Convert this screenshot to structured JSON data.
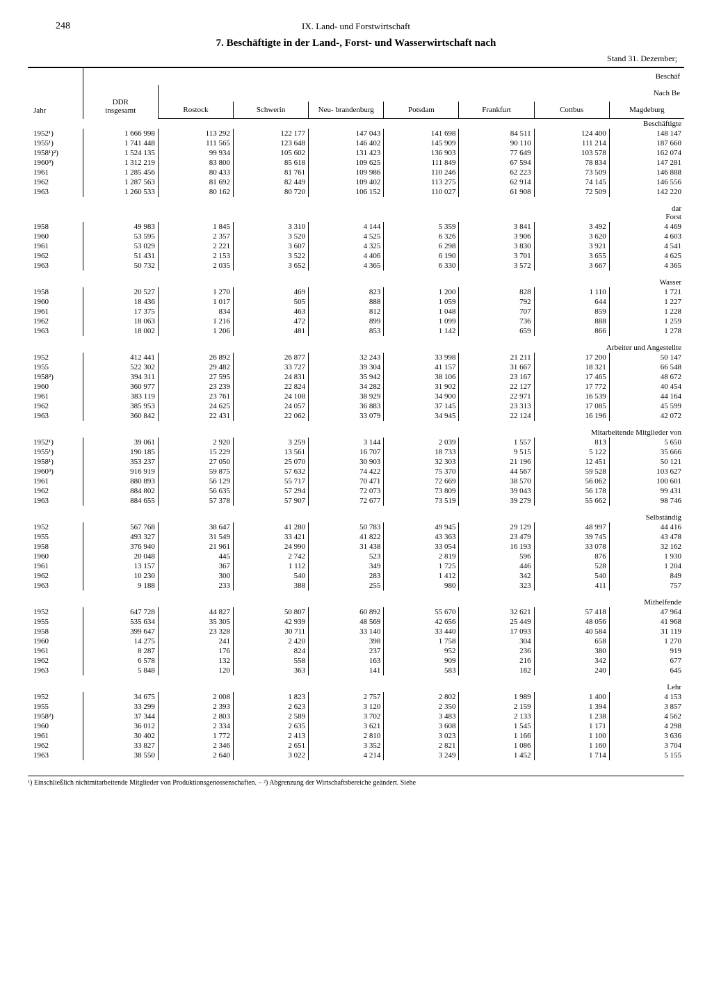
{
  "page_number": "248",
  "section_header": "IX. Land- und Forstwirtschaft",
  "title": "7. Beschäftigte in der Land-, Forst- und Wasserwirtschaft nach",
  "subtitle": "Stand 31. Dezember;",
  "header": {
    "jahr": "Jahr",
    "ddr": "DDR",
    "ddr_sub": "insgesamt",
    "beschaf": "Beschäf",
    "nach_be": "Nach Be",
    "regions": [
      "Rostock",
      "Schwerin",
      "Neu-\nbrandenburg",
      "Potsdam",
      "Frankfurt",
      "Cottbus",
      "Magdeburg"
    ]
  },
  "sections": [
    {
      "label": "Beschäftigte",
      "rows": [
        {
          "jahr": "1952¹)",
          "ddr": "1 666 998",
          "vals": [
            "113 292",
            "122 177",
            "147 043",
            "141 698",
            "84 511",
            "124 400",
            "148 147"
          ]
        },
        {
          "jahr": "1955¹)",
          "ddr": "1 741 448",
          "vals": [
            "111 565",
            "123 648",
            "146 402",
            "145 909",
            "90 110",
            "111 214",
            "187 660"
          ]
        },
        {
          "jahr": "1958¹)²)",
          "ddr": "1 524 135",
          "vals": [
            "99 934",
            "105 602",
            "131 423",
            "136 903",
            "77 649",
            "103 578",
            "162 074"
          ]
        },
        {
          "jahr": "1960³)",
          "ddr": "1 312 219",
          "vals": [
            "83 800",
            "85 618",
            "109 625",
            "111 849",
            "67 594",
            "78 834",
            "147 281"
          ]
        },
        {
          "jahr": "1961",
          "ddr": "1 285 456",
          "vals": [
            "80 433",
            "81 761",
            "109 986",
            "110 246",
            "62 223",
            "73 509",
            "146 888"
          ]
        },
        {
          "jahr": "1962",
          "ddr": "1 287 563",
          "vals": [
            "81 692",
            "82 449",
            "109 402",
            "113 275",
            "62 914",
            "74 145",
            "146 556"
          ]
        },
        {
          "jahr": "1963",
          "ddr": "1 260 533",
          "vals": [
            "80 162",
            "80 720",
            "106 152",
            "110 027",
            "61 908",
            "72 509",
            "142 220"
          ]
        }
      ]
    },
    {
      "label": "dar\nForst",
      "rows": [
        {
          "jahr": "1958",
          "ddr": "49 983",
          "vals": [
            "1 845",
            "3 310",
            "4 144",
            "5 359",
            "3 841",
            "3 492",
            "4 469"
          ]
        },
        {
          "jahr": "1960",
          "ddr": "53 595",
          "vals": [
            "2 357",
            "3 520",
            "4 525",
            "6 326",
            "3 906",
            "3 620",
            "4 603"
          ]
        },
        {
          "jahr": "1961",
          "ddr": "53 029",
          "vals": [
            "2 221",
            "3 607",
            "4 325",
            "6 298",
            "3 830",
            "3 921",
            "4 541"
          ]
        },
        {
          "jahr": "1962",
          "ddr": "51 431",
          "vals": [
            "2 153",
            "3 522",
            "4 406",
            "6 190",
            "3 701",
            "3 655",
            "4 625"
          ]
        },
        {
          "jahr": "1963",
          "ddr": "50 732",
          "vals": [
            "2 035",
            "3 652",
            "4 365",
            "6 330",
            "3 572",
            "3 667",
            "4 365"
          ]
        }
      ]
    },
    {
      "label": "Wasser",
      "rows": [
        {
          "jahr": "1958",
          "ddr": "20 527",
          "vals": [
            "1 270",
            "469",
            "823",
            "1 200",
            "828",
            "1 110",
            "1 721"
          ]
        },
        {
          "jahr": "1960",
          "ddr": "18 436",
          "vals": [
            "1 017",
            "505",
            "888",
            "1 059",
            "792",
            "644",
            "1 227"
          ]
        },
        {
          "jahr": "1961",
          "ddr": "17 375",
          "vals": [
            "834",
            "463",
            "812",
            "1 048",
            "707",
            "859",
            "1 228"
          ]
        },
        {
          "jahr": "1962",
          "ddr": "18 063",
          "vals": [
            "1 216",
            "472",
            "899",
            "1 099",
            "736",
            "888",
            "1 259"
          ]
        },
        {
          "jahr": "1963",
          "ddr": "18 002",
          "vals": [
            "1 206",
            "481",
            "853",
            "1 142",
            "659",
            "866",
            "1 278"
          ]
        }
      ]
    },
    {
      "label": "Arbeiter und Angestellte",
      "rows": [
        {
          "jahr": "1952",
          "ddr": "412 441",
          "vals": [
            "26 892",
            "26 877",
            "32 243",
            "33 998",
            "21 211",
            "17 200",
            "50 147"
          ]
        },
        {
          "jahr": "1955",
          "ddr": "522 302",
          "vals": [
            "29 482",
            "33 727",
            "39 304",
            "41 157",
            "31 667",
            "18 321",
            "66 548"
          ]
        },
        {
          "jahr": "1958²)",
          "ddr": "394 311",
          "vals": [
            "27 595",
            "24 831",
            "35 942",
            "38 106",
            "23 167",
            "17 465",
            "48 672"
          ]
        },
        {
          "jahr": "1960",
          "ddr": "360 977",
          "vals": [
            "23 239",
            "22 824",
            "34 282",
            "31 902",
            "22 127",
            "17 772",
            "40 454"
          ]
        },
        {
          "jahr": "1961",
          "ddr": "383 119",
          "vals": [
            "23 761",
            "24 108",
            "38 929",
            "34 900",
            "22 971",
            "16 539",
            "44 164"
          ]
        },
        {
          "jahr": "1962",
          "ddr": "385 953",
          "vals": [
            "24 625",
            "24 057",
            "36 883",
            "37 145",
            "23 313",
            "17 085",
            "45 599"
          ]
        },
        {
          "jahr": "1963",
          "ddr": "360 842",
          "vals": [
            "22 431",
            "22 062",
            "33 079",
            "34 945",
            "22 124",
            "16 196",
            "42 072"
          ]
        }
      ]
    },
    {
      "label": "Mitarbeitende Mitglieder von",
      "rows": [
        {
          "jahr": "1952¹)",
          "ddr": "39 061",
          "vals": [
            "2 920",
            "3 259",
            "3 144",
            "2 039",
            "1 557",
            "813",
            "5 650"
          ]
        },
        {
          "jahr": "1955¹)",
          "ddr": "190 185",
          "vals": [
            "15 229",
            "13 561",
            "16 707",
            "18 733",
            "9 515",
            "5 122",
            "35 666"
          ]
        },
        {
          "jahr": "1958¹)",
          "ddr": "353 237",
          "vals": [
            "27 050",
            "25 070",
            "30 903",
            "32 303",
            "21 196",
            "12 451",
            "50 121"
          ]
        },
        {
          "jahr": "1960³)",
          "ddr": "916 919",
          "vals": [
            "59 875",
            "57 632",
            "74 422",
            "75 370",
            "44 567",
            "59 528",
            "103 627"
          ]
        },
        {
          "jahr": "1961",
          "ddr": "880 893",
          "vals": [
            "56 129",
            "55 717",
            "70 471",
            "72 669",
            "38 570",
            "56 062",
            "100 601"
          ]
        },
        {
          "jahr": "1962",
          "ddr": "884 802",
          "vals": [
            "56 635",
            "57 294",
            "72 073",
            "73 809",
            "39 043",
            "56 178",
            "99 431"
          ]
        },
        {
          "jahr": "1963",
          "ddr": "884 655",
          "vals": [
            "57 378",
            "57 907",
            "72 677",
            "73 519",
            "39 279",
            "55 662",
            "98 746"
          ]
        }
      ]
    },
    {
      "label": "Selbständig",
      "rows": [
        {
          "jahr": "1952",
          "ddr": "567 768",
          "vals": [
            "38 647",
            "41 280",
            "50 783",
            "49 945",
            "29 129",
            "48 997",
            "44 416"
          ]
        },
        {
          "jahr": "1955",
          "ddr": "493 327",
          "vals": [
            "31 549",
            "33 421",
            "41 822",
            "43 363",
            "23 479",
            "39 745",
            "43 478"
          ]
        },
        {
          "jahr": "1958",
          "ddr": "376 940",
          "vals": [
            "21 961",
            "24 990",
            "31 438",
            "33 054",
            "16 193",
            "33 078",
            "32 162"
          ]
        },
        {
          "jahr": "1960",
          "ddr": "20 048",
          "vals": [
            "445",
            "2 742",
            "523",
            "2 819",
            "596",
            "876",
            "1 930"
          ]
        },
        {
          "jahr": "1961",
          "ddr": "13 157",
          "vals": [
            "367",
            "1 112",
            "349",
            "1 725",
            "446",
            "528",
            "1 204"
          ]
        },
        {
          "jahr": "1962",
          "ddr": "10 230",
          "vals": [
            "300",
            "540",
            "283",
            "1 412",
            "342",
            "540",
            "849"
          ]
        },
        {
          "jahr": "1963",
          "ddr": "9 188",
          "vals": [
            "233",
            "388",
            "255",
            "980",
            "323",
            "411",
            "757"
          ]
        }
      ]
    },
    {
      "label": "Mithelfende",
      "rows": [
        {
          "jahr": "1952",
          "ddr": "647 728",
          "vals": [
            "44 827",
            "50 807",
            "60 892",
            "55 670",
            "32 621",
            "57 418",
            "47 964"
          ]
        },
        {
          "jahr": "1955",
          "ddr": "535 634",
          "vals": [
            "35 305",
            "42 939",
            "48 569",
            "42 656",
            "25 449",
            "48 056",
            "41 968"
          ]
        },
        {
          "jahr": "1958",
          "ddr": "399 647",
          "vals": [
            "23 328",
            "30 711",
            "33 140",
            "33 440",
            "17 093",
            "40 584",
            "31 119"
          ]
        },
        {
          "jahr": "1960",
          "ddr": "14 275",
          "vals": [
            "241",
            "2 420",
            "398",
            "1 758",
            "304",
            "658",
            "1 270"
          ]
        },
        {
          "jahr": "1961",
          "ddr": "8 287",
          "vals": [
            "176",
            "824",
            "237",
            "952",
            "236",
            "380",
            "919"
          ]
        },
        {
          "jahr": "1962",
          "ddr": "6 578",
          "vals": [
            "132",
            "558",
            "163",
            "909",
            "216",
            "342",
            "677"
          ]
        },
        {
          "jahr": "1963",
          "ddr": "5 848",
          "vals": [
            "120",
            "363",
            "141",
            "583",
            "182",
            "240",
            "645"
          ]
        }
      ]
    },
    {
      "label": "Lehr",
      "rows": [
        {
          "jahr": "1952",
          "ddr": "34 675",
          "vals": [
            "2 008",
            "1 823",
            "2 757",
            "2 802",
            "1 989",
            "1 400",
            "4 153"
          ]
        },
        {
          "jahr": "1955",
          "ddr": "33 299",
          "vals": [
            "2 393",
            "2 623",
            "3 120",
            "2 350",
            "2 159",
            "1 394",
            "3 857"
          ]
        },
        {
          "jahr": "1958²)",
          "ddr": "37 344",
          "vals": [
            "2 803",
            "2 589",
            "3 702",
            "3 483",
            "2 133",
            "1 238",
            "4 562"
          ]
        },
        {
          "jahr": "1960",
          "ddr": "36 012",
          "vals": [
            "2 334",
            "2 635",
            "3 621",
            "3 608",
            "1 545",
            "1 171",
            "4 298"
          ]
        },
        {
          "jahr": "1961",
          "ddr": "30 402",
          "vals": [
            "1 772",
            "2 413",
            "2 810",
            "3 023",
            "1 166",
            "1 100",
            "3 636"
          ]
        },
        {
          "jahr": "1962",
          "ddr": "33 827",
          "vals": [
            "2 346",
            "2 651",
            "3 352",
            "2 821",
            "1 086",
            "1 160",
            "3 704"
          ]
        },
        {
          "jahr": "1963",
          "ddr": "38 550",
          "vals": [
            "2 640",
            "3 022",
            "4 214",
            "3 249",
            "1 452",
            "1 714",
            "5 155"
          ]
        }
      ]
    }
  ],
  "footnote": "¹) Einschließlich nichtmitarbeitende Mitglieder von Produktionsgenossenschaften. – ²) Abgrenzung der Wirtschaftsbereiche geändert. Siehe"
}
